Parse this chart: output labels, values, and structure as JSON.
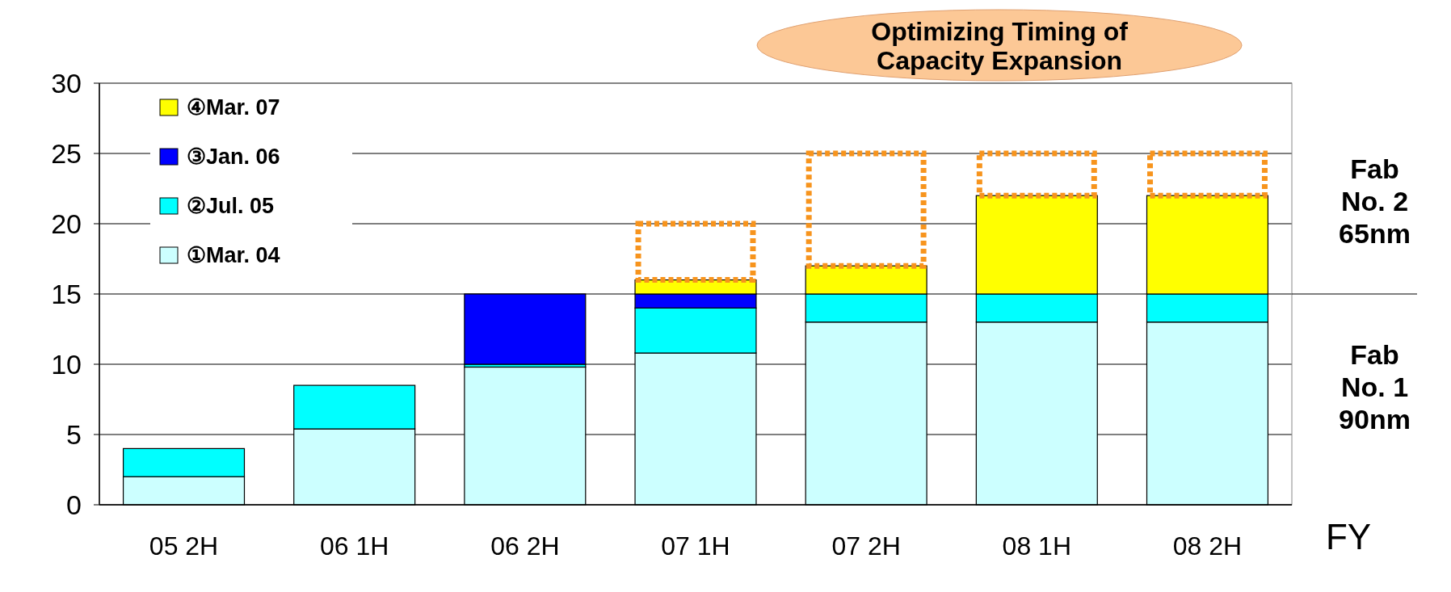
{
  "chart_data": {
    "type": "bar",
    "stacked": true,
    "xlabel": "FY",
    "categories": [
      "05 2H",
      "06 1H",
      "06 2H",
      "07 1H",
      "07 2H",
      "08 1H",
      "08 2H"
    ],
    "series": [
      {
        "name": "①Mar. 04",
        "color": "#ccffff",
        "values": [
          2,
          5.4,
          9.8,
          10.8,
          13,
          13,
          13
        ]
      },
      {
        "name": "②Jul. 05",
        "color": "#00ffff",
        "values": [
          2,
          3.1,
          0.2,
          3.2,
          2,
          2,
          2
        ]
      },
      {
        "name": "③Jan. 06",
        "color": "#0000ff",
        "values": [
          null,
          null,
          5,
          1,
          null,
          null,
          null
        ]
      },
      {
        "name": "④Mar. 07",
        "color": "#ffff00",
        "values": [
          null,
          null,
          null,
          1,
          2,
          7,
          7
        ]
      },
      {
        "color": "#f7941d",
        "line_style": "dotted",
        "values": [
          null,
          null,
          null,
          4,
          8,
          3,
          3
        ]
      }
    ],
    "ylim": [
      0,
      30
    ],
    "yticks": [
      0,
      5,
      10,
      15,
      20,
      25,
      30
    ],
    "grid": "y",
    "legend": "top left",
    "annotations": [
      "Optimizing Timing of Capacity Expansion",
      "Fab No. 2 65nm",
      "Fab No. 1 90nm"
    ]
  }
}
